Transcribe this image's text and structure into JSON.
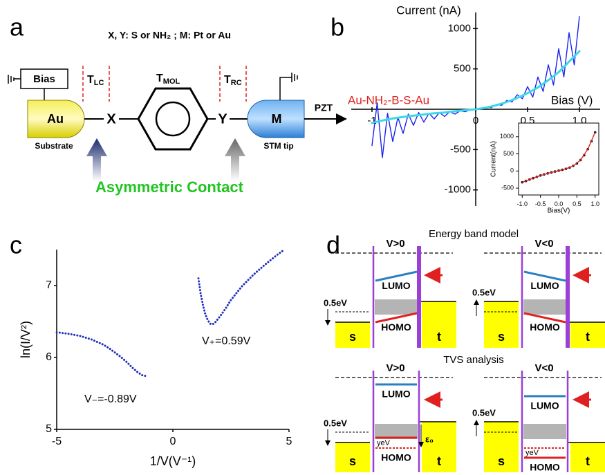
{
  "labels": [
    "a",
    "b",
    "c",
    "d"
  ],
  "panel_a": {
    "subtitle": "X, Y: S or NH₂ ; M:  Pt or Au",
    "bias": "Bias",
    "t_lc": [
      "T",
      "LC"
    ],
    "t_mol": [
      "T",
      "MOL"
    ],
    "t_rc": [
      "T",
      "RC"
    ],
    "substrate_metal": "Au",
    "x": "X",
    "y": "Y",
    "tip_metal": "M",
    "pzt": "PZT",
    "substrate": "Substrate",
    "tip": "STM tip",
    "caption": "Asymmetric Contact"
  },
  "chart_data": [
    {
      "type": "line",
      "title": "Current (nA)",
      "xlabel": "Bias (V)",
      "annotation": "Au-NH₂-B-S-Au",
      "annotation_color": "#e0201b",
      "xlim": [
        -1.2,
        1.2
      ],
      "ylim": [
        -1200,
        1200
      ],
      "xticks": [
        -1,
        0,
        0.5,
        {
          "value": 1,
          "label": "1.0"
        }
      ],
      "yticks": [
        -1000,
        -500,
        500,
        1000
      ],
      "series": [
        {
          "color": "#1a22ee",
          "style": "line",
          "x": [
            -1.0,
            -0.95,
            -0.9,
            -0.85,
            -0.8,
            -0.75,
            -0.7,
            -0.65,
            -0.6,
            -0.55,
            -0.5,
            -0.45,
            -0.4,
            -0.35,
            -0.3,
            -0.25,
            -0.2,
            -0.15,
            -0.1,
            -0.05,
            0,
            0.05,
            0.1,
            0.15,
            0.2,
            0.25,
            0.3,
            0.35,
            0.4,
            0.45,
            0.5,
            0.55,
            0.6,
            0.65,
            0.7,
            0.75,
            0.8,
            0.85,
            0.9,
            0.95,
            1.0
          ],
          "values": [
            -450,
            80,
            -600,
            -50,
            -400,
            -100,
            -300,
            -60,
            -200,
            -40,
            -160,
            -50,
            -120,
            -40,
            -90,
            -30,
            -60,
            -20,
            -30,
            -5,
            0,
            10,
            25,
            20,
            60,
            50,
            110,
            90,
            180,
            130,
            280,
            150,
            400,
            220,
            550,
            300,
            750,
            400,
            950,
            550,
            1150
          ]
        },
        {
          "color": "#3ad8ea",
          "style": "fit",
          "x": [
            -1.0,
            -0.9,
            -0.8,
            -0.7,
            -0.6,
            -0.5,
            -0.4,
            -0.3,
            -0.2,
            -0.1,
            0,
            0.1,
            0.2,
            0.3,
            0.4,
            0.5,
            0.6,
            0.7,
            0.8,
            0.9,
            1.0
          ],
          "values": [
            -170,
            -140,
            -115,
            -95,
            -80,
            -65,
            -50,
            -40,
            -25,
            -12,
            0,
            20,
            50,
            90,
            140,
            200,
            270,
            360,
            460,
            590,
            720
          ]
        }
      ]
    },
    {
      "type": "line",
      "xlabel": "Bias(V)",
      "ylabel": "Current(nA)",
      "xlim": [
        -1.1,
        1.1
      ],
      "ylim": [
        -700,
        1400
      ],
      "xticks": [
        {
          "value": -1,
          "label": "-1.0"
        },
        -0.5,
        {
          "value": 0,
          "label": "0.0"
        },
        0.5,
        {
          "value": 1,
          "label": "1.0"
        }
      ],
      "yticks": [
        -500,
        0,
        500,
        1000
      ],
      "series": [
        {
          "color": "#111111",
          "style": "markers",
          "x": [
            -1.0,
            -0.9,
            -0.8,
            -0.7,
            -0.6,
            -0.5,
            -0.4,
            -0.3,
            -0.2,
            -0.1,
            0,
            0.1,
            0.2,
            0.3,
            0.4,
            0.5,
            0.6,
            0.7,
            0.8,
            0.9,
            1.0
          ],
          "values": [
            -330,
            -290,
            -250,
            -210,
            -170,
            -130,
            -100,
            -70,
            -40,
            -15,
            10,
            35,
            65,
            100,
            150,
            220,
            320,
            460,
            640,
            870,
            1130
          ]
        },
        {
          "color": "#e02020",
          "style": "line",
          "x": [
            -1.0,
            -0.8,
            -0.6,
            -0.4,
            -0.2,
            0,
            0.2,
            0.4,
            0.6,
            0.8,
            1.0
          ],
          "values": [
            -330,
            -250,
            -170,
            -100,
            -40,
            10,
            65,
            150,
            320,
            640,
            1130
          ]
        }
      ]
    },
    {
      "type": "line",
      "xlabel": "1/V(V⁻¹)",
      "ylabel": "ln(I/V²)",
      "annotations": [
        "V₋=-0.89V",
        "V₊=0.59V"
      ],
      "xlim": [
        -5,
        5
      ],
      "ylim": [
        5,
        7.5
      ],
      "xticks": [
        -5,
        0,
        5
      ],
      "yticks": [
        5,
        6,
        7
      ],
      "series": [
        {
          "color": "#1f2fb8",
          "style": "dotted",
          "x": [
            -5,
            -4.5,
            -4,
            -3.5,
            -3,
            -2.75,
            -2.5,
            -2.25,
            -2,
            -1.75,
            -1.5,
            -1.3,
            -1.12
          ],
          "values": [
            6.35,
            6.33,
            6.3,
            6.25,
            6.18,
            6.13,
            6.07,
            6.01,
            5.94,
            5.86,
            5.79,
            5.75,
            5.74
          ]
        },
        {
          "color": "#1f2fb8",
          "style": "dotted",
          "x": [
            1.1,
            1.2,
            1.3,
            1.4,
            1.5,
            1.6,
            1.7,
            1.8,
            2.0,
            2.25,
            2.5,
            3,
            3.5,
            4,
            4.5,
            4.8
          ],
          "values": [
            7.1,
            6.88,
            6.72,
            6.6,
            6.52,
            6.47,
            6.46,
            6.48,
            6.56,
            6.67,
            6.8,
            7.0,
            7.16,
            7.3,
            7.43,
            7.5
          ]
        }
      ]
    }
  ],
  "diagram_d": {
    "title_top": "Energy band model",
    "title_bottom": "TVS analysis",
    "diagrams": [
      {
        "bias": "V>0",
        "lumo": "LUMO",
        "homo": "HOMO",
        "left": "s",
        "right": "t",
        "offset": "0.5eV"
      },
      {
        "bias": "V<0",
        "lumo": "LUMO",
        "homo": "HOMO",
        "left": "s",
        "right": "t",
        "offset": "0.5eV"
      },
      {
        "bias": "V>0",
        "lumo": "LUMO",
        "homo": "HOMO",
        "left": "s",
        "right": "t",
        "offset": "0.5eV",
        "shift": "yeV",
        "eps": "ε₀"
      },
      {
        "bias": "V<0",
        "lumo": "LUMO",
        "homo": "HOMO",
        "left": "s",
        "right": "t",
        "offset": "0.5eV",
        "shift": "yeV"
      }
    ]
  }
}
